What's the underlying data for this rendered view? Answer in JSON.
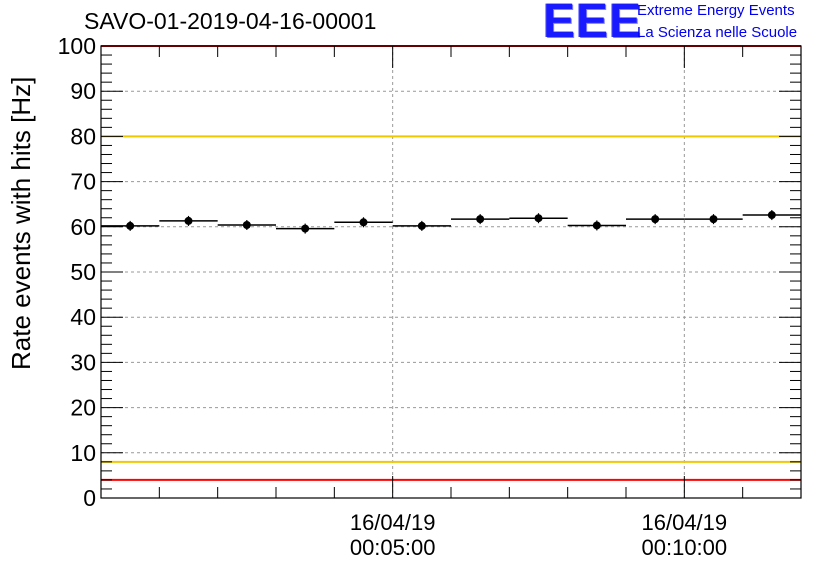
{
  "header": {
    "run_title": "SAVO-01-2019-04-16-00001",
    "logo_text": "EEE",
    "logo_line1": "Extreme Energy Events",
    "logo_line2": "La Scienza nelle Scuole"
  },
  "colors": {
    "limit_red": "#ff0000",
    "limit_yellow": "#f0c800",
    "grid": "#999999",
    "points": "#000000"
  },
  "chart_data": {
    "type": "scatter",
    "title": "SAVO-01-2019-04-16-00001",
    "ylabel": "Rate events with hits [Hz]",
    "xlabel": "",
    "ylim": [
      0,
      100
    ],
    "y_ticks": [
      0,
      10,
      20,
      30,
      40,
      50,
      60,
      70,
      80,
      90,
      100
    ],
    "x_range_min": [
      0,
      12
    ],
    "x_tick_labels": [
      {
        "date": "16/04/19",
        "time": "00:05:00",
        "at_min": 5
      },
      {
        "date": "16/04/19",
        "time": "00:10:00",
        "at_min": 10
      }
    ],
    "bin_width_min": 1,
    "points": [
      {
        "x": 0.5,
        "y": 60.2
      },
      {
        "x": 1.5,
        "y": 61.3
      },
      {
        "x": 2.5,
        "y": 60.4
      },
      {
        "x": 3.5,
        "y": 59.6
      },
      {
        "x": 4.5,
        "y": 61.0
      },
      {
        "x": 5.5,
        "y": 60.2
      },
      {
        "x": 6.5,
        "y": 61.7
      },
      {
        "x": 7.5,
        "y": 61.9
      },
      {
        "x": 8.5,
        "y": 60.3
      },
      {
        "x": 9.5,
        "y": 61.7
      },
      {
        "x": 10.5,
        "y": 61.7
      },
      {
        "x": 11.5,
        "y": 62.6
      }
    ],
    "reference_lines": [
      {
        "y": 100,
        "color": "red"
      },
      {
        "y": 80,
        "color": "yellow"
      },
      {
        "y": 8,
        "color": "yellow"
      },
      {
        "y": 4,
        "color": "red"
      }
    ],
    "grid": true
  }
}
